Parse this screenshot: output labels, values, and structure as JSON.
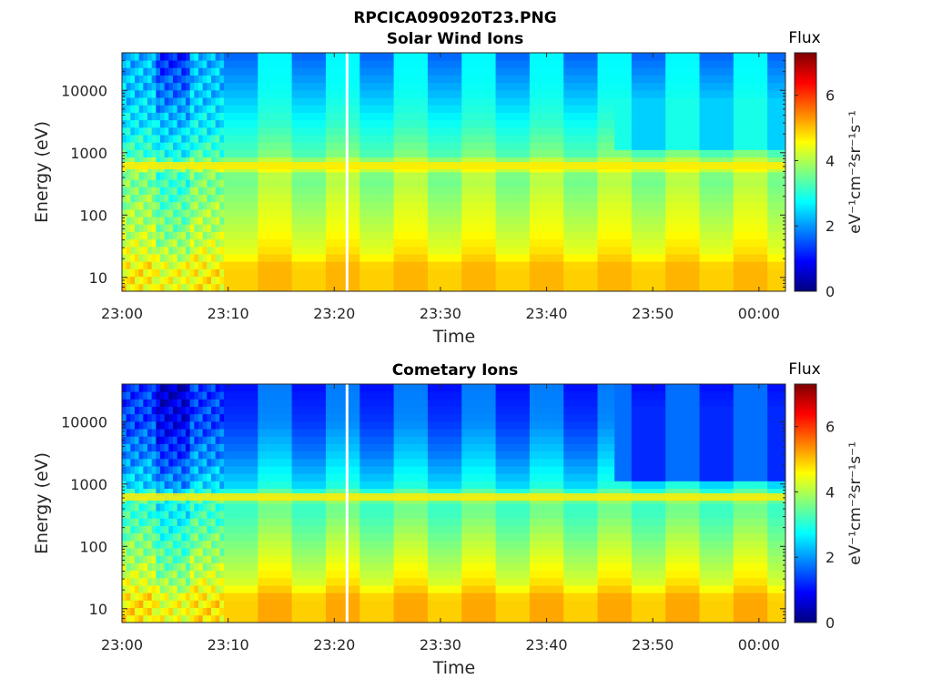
{
  "figure": {
    "title": "RPCICA090920T23.PNG"
  },
  "colorscale": {
    "stops": [
      "#00007f",
      "#0000ff",
      "#007fff",
      "#00ffff",
      "#7fff7f",
      "#ffff00",
      "#ff7f00",
      "#ff0000",
      "#7f0000"
    ],
    "gap_color": "#ffffff"
  },
  "chart_data": [
    {
      "type": "heatmap",
      "title": "Solar Wind Ions",
      "xlabel": "Time",
      "ylabel": "Energy (eV)",
      "x_unit": "minutes after 23:00",
      "xlim": [
        0,
        62.5
      ],
      "x_ticks": [
        0,
        10,
        20,
        30,
        40,
        50,
        60
      ],
      "x_tick_labels": [
        "23:00",
        "23:10",
        "23:20",
        "23:30",
        "23:40",
        "23:50",
        "00:00"
      ],
      "y_scale": "log",
      "ylim": [
        6,
        40000
      ],
      "y_ticks": [
        10,
        100,
        1000,
        10000
      ],
      "y_tick_labels": [
        "10",
        "100",
        "1000",
        "10000"
      ],
      "data_gap_minute": 21.2,
      "colorbar": {
        "title": "Flux",
        "label": "eV⁻¹cm⁻²sr⁻¹s⁻¹",
        "range": [
          0,
          7.3
        ],
        "ticks": [
          0,
          2,
          4,
          6
        ],
        "tick_labels": [
          "0",
          "2",
          "4",
          "6"
        ]
      },
      "profile": {
        "energy_points": [
          6,
          15,
          25,
          60,
          150,
          400,
          600,
          900,
          3000,
          10000,
          40000
        ],
        "flux_dense": [
          5.1,
          5.1,
          4.8,
          4.5,
          4.3,
          4.0,
          4.6,
          3.7,
          3.1,
          2.8,
          2.7
        ],
        "flux_sparse": [
          4.9,
          4.9,
          4.4,
          4.1,
          3.8,
          3.5,
          4.2,
          3.3,
          2.8,
          2.2,
          1.6
        ],
        "bright_line_energy": 620,
        "early_minute_end": 9.5,
        "variant_period_min": 3.2,
        "high_energy_dropout_minute": 46.5,
        "high_energy_dropout_flux": 2.4
      }
    },
    {
      "type": "heatmap",
      "title": "Cometary Ions",
      "xlabel": "Time",
      "ylabel": "Energy (eV)",
      "x_unit": "minutes after 23:00",
      "xlim": [
        0,
        62.5
      ],
      "x_ticks": [
        0,
        10,
        20,
        30,
        40,
        50,
        60
      ],
      "x_tick_labels": [
        "23:00",
        "23:10",
        "23:20",
        "23:30",
        "23:40",
        "23:50",
        "00:00"
      ],
      "y_scale": "log",
      "ylim": [
        6,
        40000
      ],
      "y_ticks": [
        10,
        100,
        1000,
        10000
      ],
      "y_tick_labels": [
        "10",
        "100",
        "1000",
        "10000"
      ],
      "data_gap_minute": 21.2,
      "colorbar": {
        "title": "Flux",
        "label": "eV⁻¹cm⁻²sr⁻¹s⁻¹",
        "range": [
          0,
          7.3
        ],
        "ticks": [
          0,
          2,
          4,
          6
        ],
        "tick_labels": [
          "0",
          "2",
          "4",
          "6"
        ]
      },
      "profile": {
        "energy_points": [
          6,
          15,
          25,
          60,
          150,
          400,
          600,
          900,
          3000,
          10000,
          40000
        ],
        "flux_dense": [
          5.2,
          5.2,
          4.8,
          4.4,
          4.0,
          3.5,
          3.9,
          3.0,
          2.4,
          1.9,
          1.8
        ],
        "flux_sparse": [
          4.9,
          4.9,
          4.3,
          3.9,
          3.5,
          3.1,
          3.5,
          2.5,
          1.8,
          1.3,
          1.0
        ],
        "bright_line_energy": 620,
        "early_minute_end": 9.5,
        "variant_period_min": 3.2,
        "high_energy_dropout_minute": 46.5,
        "high_energy_dropout_flux": 1.2
      }
    }
  ]
}
